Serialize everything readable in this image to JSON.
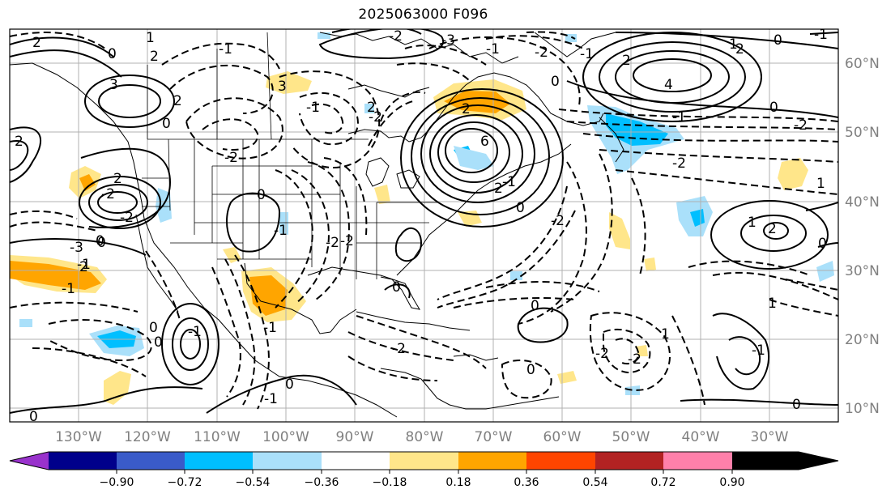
{
  "title": "2025063000 F096",
  "map": {
    "lon_labels": [
      "130°W",
      "120°W",
      "110°W",
      "100°W",
      "90°W",
      "80°W",
      "70°W",
      "60°W",
      "50°W",
      "40°W",
      "30°W"
    ],
    "lat_labels": [
      "60°N",
      "50°N",
      "40°N",
      "30°N",
      "20°N",
      "10°N"
    ],
    "contour_labels": [
      "2",
      "1",
      "2",
      "0",
      "3",
      "2",
      "2",
      "0",
      "-1",
      "-2",
      "3",
      "0",
      "-1",
      "-2",
      "2",
      "4",
      "-2",
      "-3",
      "2",
      "-1",
      "6",
      "2",
      "0",
      "-2",
      "0",
      "-2",
      "-1",
      "2",
      "2",
      "0",
      "-2",
      "-1",
      "0",
      "-2",
      "1",
      "0",
      "2",
      "2",
      "-2",
      "-3",
      "-1",
      "0",
      "-1",
      "-1",
      "0",
      "-2",
      "-2",
      "-2",
      "0",
      "-2",
      "1",
      "-1",
      "0",
      "0",
      "-1",
      "0",
      "-1",
      "1",
      "-2",
      "-2",
      "-1",
      "0",
      "1",
      "0",
      "0",
      "-1",
      "1",
      "2",
      "-1",
      "0"
    ]
  },
  "colorbar": {
    "colors": [
      "#9932cc",
      "#00008b",
      "#3a5bc9",
      "#00bfff",
      "#aae0fa",
      "#ffffff",
      "#ffe68a",
      "#ffa500",
      "#ff4500",
      "#b22222",
      "#ff80aa"
    ],
    "tick_labels": [
      "−0.90",
      "−0.72",
      "−0.54",
      "−0.36",
      "−0.18",
      "0.18",
      "0.36",
      "0.54",
      "0.72",
      "0.90"
    ]
  }
}
